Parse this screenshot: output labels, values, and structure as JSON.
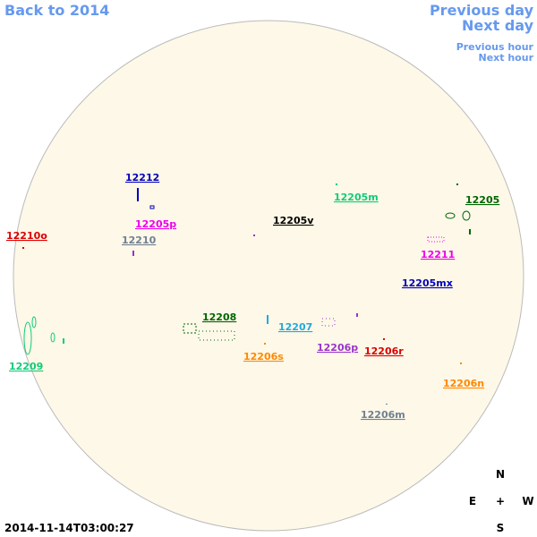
{
  "nav": {
    "back": "Back to 2014",
    "previous_day": "Previous day",
    "next_day": "Next day",
    "previous_hour": "Previous hour",
    "next_hour": "Next hour"
  },
  "regions": [
    {
      "label": "12212",
      "color": "#0000bb"
    },
    {
      "label": "12205p",
      "color": "#ee00ee"
    },
    {
      "label": "12210",
      "color": "#708090"
    },
    {
      "label": "12210o",
      "color": "#dd0000"
    },
    {
      "label": "12205v",
      "color": "#000000"
    },
    {
      "label": "12205m",
      "color": "#11cc77"
    },
    {
      "label": "12205",
      "color": "#006600"
    },
    {
      "label": "12211",
      "color": "#ee00ee"
    },
    {
      "label": "12205mx",
      "color": "#0000bb"
    },
    {
      "label": "12208",
      "color": "#006600"
    },
    {
      "label": "12207",
      "color": "#22aadd"
    },
    {
      "label": "12209",
      "color": "#11cc77"
    },
    {
      "label": "12206s",
      "color": "#ff8800"
    },
    {
      "label": "12206p",
      "color": "#9933cc"
    },
    {
      "label": "12206r",
      "color": "#dd0000"
    },
    {
      "label": "12206n",
      "color": "#ff8800"
    },
    {
      "label": "12206m",
      "color": "#708090"
    }
  ],
  "compass": {
    "north": "N",
    "east": "E",
    "center": "+",
    "west": "W",
    "south": "S"
  },
  "timestamp": "2014-11-14T03:00:27"
}
